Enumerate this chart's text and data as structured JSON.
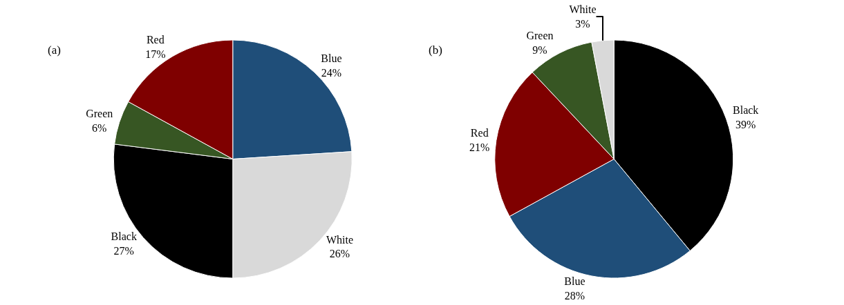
{
  "chart_data": [
    {
      "type": "pie",
      "title": "(a)",
      "categories": [
        "Blue",
        "White",
        "Black",
        "Green",
        "Red"
      ],
      "values": [
        24,
        26,
        27,
        6,
        17
      ],
      "value_labels": [
        "24%",
        "26%",
        "27%",
        "6%",
        "17%"
      ],
      "colors": [
        "#1f4e79",
        "#d9d9d9",
        "#000000",
        "#375623",
        "#7f0000"
      ],
      "legend": false
    },
    {
      "type": "pie",
      "title": "(b)",
      "categories": [
        "Black",
        "Blue",
        "Red",
        "Green",
        "White"
      ],
      "values": [
        39,
        28,
        21,
        9,
        3
      ],
      "value_labels": [
        "39%",
        "28%",
        "21%",
        "9%",
        "3%"
      ],
      "colors": [
        "#000000",
        "#1f4e79",
        "#7f0000",
        "#375623",
        "#d9d9d9"
      ],
      "legend": false
    }
  ]
}
